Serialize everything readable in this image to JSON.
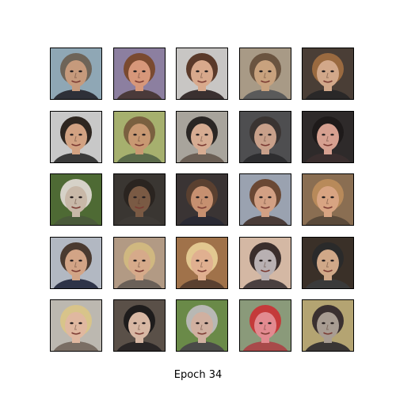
{
  "figure": {
    "caption": "Epoch 34",
    "background": "#ffffff",
    "tile_border_color": "#000000",
    "grid": {
      "rows": 5,
      "cols": 5
    },
    "tiles": [
      {
        "bg": "#8fa7b5",
        "skin": "#c69a7c",
        "hair": "#6e6458",
        "cloth": "#2e3038"
      },
      {
        "bg": "#8c7fa0",
        "skin": "#d7977a",
        "hair": "#7a4a30",
        "cloth": "#4a3a3a"
      },
      {
        "bg": "#c8c6c4",
        "skin": "#d8a98c",
        "hair": "#5a3a2a",
        "cloth": "#3a3030"
      },
      {
        "bg": "#a89a86",
        "skin": "#c8a27e",
        "hair": "#6a5440",
        "cloth": "#5a5a5a"
      },
      {
        "bg": "#4a3e36",
        "skin": "#d2a88a",
        "hair": "#9a6a40",
        "cloth": "#2a2828"
      },
      {
        "bg": "#c8c8c8",
        "skin": "#d2a282",
        "hair": "#2e2620",
        "cloth": "#3a3a3a"
      },
      {
        "bg": "#a6b06e",
        "skin": "#c89872",
        "hair": "#7a6040",
        "cloth": "#5a6a4a"
      },
      {
        "bg": "#a8a49c",
        "skin": "#d6ac92",
        "hair": "#2a2624",
        "cloth": "#6a5e54"
      },
      {
        "bg": "#4e4e50",
        "skin": "#c8a08a",
        "hair": "#3a3432",
        "cloth": "#2e2e30"
      },
      {
        "bg": "#2e2a2a",
        "skin": "#d6a090",
        "hair": "#1e1a1a",
        "cloth": "#3a2e2e"
      },
      {
        "bg": "#4e6a34",
        "skin": "#c8b8a8",
        "hair": "#d6d2c8",
        "cloth": "#4a5a3a"
      },
      {
        "bg": "#3a3632",
        "skin": "#7a5a44",
        "hair": "#2a2420",
        "cloth": "#3e3a36"
      },
      {
        "bg": "#3a3434",
        "skin": "#c69070",
        "hair": "#5a4030",
        "cloth": "#2a2a34"
      },
      {
        "bg": "#9aa2b0",
        "skin": "#d2a084",
        "hair": "#6a4834",
        "cloth": "#4a3c38"
      },
      {
        "bg": "#8a6e52",
        "skin": "#d8a482",
        "hair": "#b88a5a",
        "cloth": "#5a4a3a"
      },
      {
        "bg": "#b2b8c2",
        "skin": "#d2a486",
        "hair": "#4a3a30",
        "cloth": "#2e3448"
      },
      {
        "bg": "#b29a84",
        "skin": "#d6aa8a",
        "hair": "#d0b880",
        "cloth": "#6a6058"
      },
      {
        "bg": "#a0724a",
        "skin": "#e0b090",
        "hair": "#e2c890",
        "cloth": "#5a4030"
      },
      {
        "bg": "#d4b8a4",
        "skin": "#b8b0b2",
        "hair": "#3a2e2c",
        "cloth": "#4a4040"
      },
      {
        "bg": "#3a3028",
        "skin": "#d0a888",
        "hair": "#2a2a2a",
        "cloth": "#3a3a3a"
      },
      {
        "bg": "#bcb8b0",
        "skin": "#e0b8a0",
        "hair": "#d8c48a",
        "cloth": "#7a6e64"
      },
      {
        "bg": "#5a5048",
        "skin": "#d8b8a4",
        "hair": "#1e1c1c",
        "cloth": "#2a2626"
      },
      {
        "bg": "#6a8a48",
        "skin": "#d0b0a0",
        "hair": "#b8b8b4",
        "cloth": "#4a4a48"
      },
      {
        "bg": "#8a9a7a",
        "skin": "#e28a90",
        "hair": "#c43a3a",
        "cloth": "#a84a4a"
      },
      {
        "bg": "#b4a472",
        "skin": "#a89c92",
        "hair": "#3a3030",
        "cloth": "#3a3634"
      }
    ]
  }
}
